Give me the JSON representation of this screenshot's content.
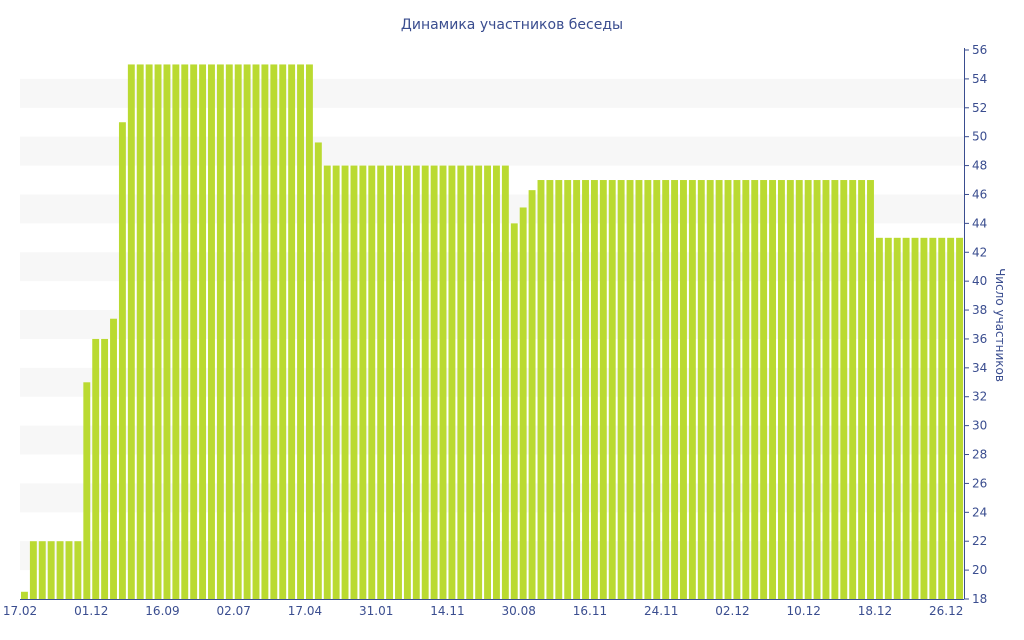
{
  "chart_data": {
    "type": "bar",
    "title": "Динамика участников беседы",
    "ylabel": "Число участников",
    "xlabel": "",
    "ylim": [
      18,
      56
    ],
    "y_ticks": [
      18,
      20,
      22,
      24,
      26,
      28,
      30,
      32,
      34,
      36,
      38,
      40,
      42,
      44,
      46,
      48,
      50,
      52,
      54,
      56
    ],
    "y_axis_position": "right",
    "bar_color": "#bada31",
    "band_color": "#f7f7f7",
    "x_tick_labels": [
      {
        "label": "17.02",
        "index": 0
      },
      {
        "label": "01.12",
        "index": 8
      },
      {
        "label": "16.09",
        "index": 16
      },
      {
        "label": "02.07",
        "index": 24
      },
      {
        "label": "17.04",
        "index": 32
      },
      {
        "label": "31.01",
        "index": 40
      },
      {
        "label": "14.11",
        "index": 48
      },
      {
        "label": "30.08",
        "index": 56
      },
      {
        "label": "16.11",
        "index": 64
      },
      {
        "label": "24.11",
        "index": 72
      },
      {
        "label": "02.12",
        "index": 80
      },
      {
        "label": "10.12",
        "index": 88
      },
      {
        "label": "18.12",
        "index": 96
      },
      {
        "label": "26.12",
        "index": 104
      }
    ],
    "values": [
      18.5,
      22,
      22,
      22,
      22,
      22,
      22,
      33,
      36,
      36,
      37.4,
      51,
      55,
      55,
      55,
      55,
      55,
      55,
      55,
      55,
      55,
      55,
      55,
      55,
      55,
      55,
      55,
      55,
      55,
      55,
      55,
      55,
      55,
      49.6,
      48,
      48,
      48,
      48,
      48,
      48,
      48,
      48,
      48,
      48,
      48,
      48,
      48,
      48,
      48,
      48,
      48,
      48,
      48,
      48,
      48,
      44,
      45.1,
      46.3,
      47,
      47,
      47,
      47,
      47,
      47,
      47,
      47,
      47,
      47,
      47,
      47,
      47,
      47,
      47,
      47,
      47,
      47,
      47,
      47,
      47,
      47,
      47,
      47,
      47,
      47,
      47,
      47,
      47,
      47,
      47,
      47,
      47,
      47,
      47,
      47,
      47,
      47,
      43,
      43,
      43,
      43,
      43,
      43,
      43,
      43,
      43,
      43
    ]
  }
}
